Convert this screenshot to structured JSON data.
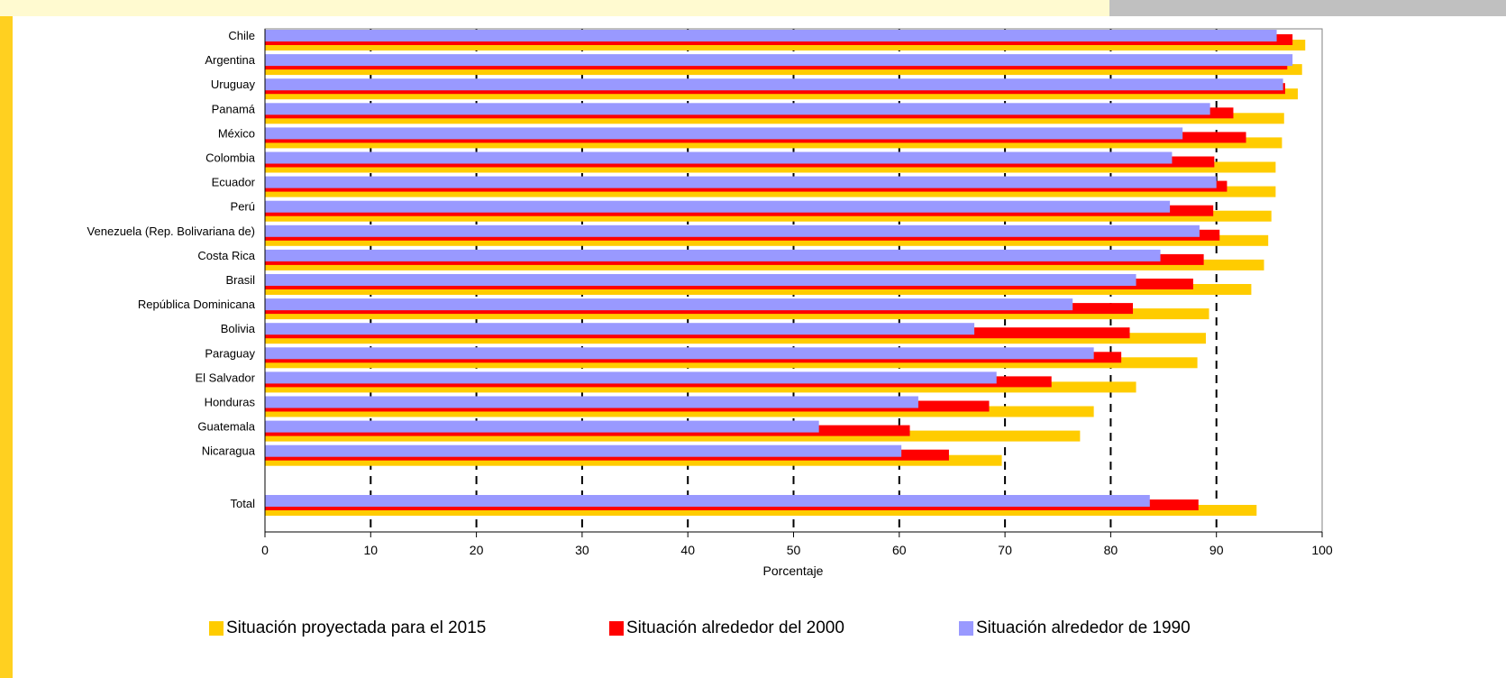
{
  "colors": {
    "series_2015": "#ffcc00",
    "series_2000": "#ff0000",
    "series_1990": "#9999ff",
    "background": "#ffffff",
    "page_background": "#fffde6",
    "accent_edge": "#ffd020"
  },
  "chart_data": {
    "type": "bar",
    "orientation": "horizontal",
    "title": "",
    "xlabel": "Porcentaje",
    "ylabel": "",
    "xlim": [
      0,
      100
    ],
    "xticks": [
      0,
      10,
      20,
      30,
      40,
      50,
      60,
      70,
      80,
      90,
      100
    ],
    "grid": "vertical dashed",
    "legend_position": "bottom",
    "categories": [
      "Chile",
      "Argentina",
      "Uruguay",
      "Panamá",
      "México",
      "Colombia",
      "Ecuador",
      "Perú",
      "Venezuela (Rep. Bolivariana de)",
      "Costa Rica",
      "Brasil",
      "República Dominicana",
      "Bolivia",
      "Paraguay",
      "El Salvador",
      "Honduras",
      "Guatemala",
      "Nicaragua",
      "Total"
    ],
    "series": [
      {
        "name": "Situación proyectada para el 2015",
        "values": [
          98.4,
          98.1,
          97.7,
          96.4,
          96.2,
          95.6,
          95.6,
          95.2,
          94.9,
          94.5,
          93.3,
          89.3,
          89.0,
          88.2,
          82.4,
          78.4,
          77.1,
          69.7,
          93.8
        ]
      },
      {
        "name": "Situación alrededor del 2000",
        "values": [
          97.2,
          96.7,
          96.5,
          91.6,
          92.8,
          89.8,
          91.0,
          89.7,
          90.3,
          88.8,
          87.8,
          82.1,
          81.8,
          81.0,
          74.4,
          68.5,
          61.0,
          64.7,
          88.3
        ]
      },
      {
        "name": "Situación alrededor de 1990",
        "values": [
          95.7,
          97.2,
          96.3,
          89.4,
          86.8,
          85.8,
          90.0,
          85.6,
          88.4,
          84.7,
          82.4,
          76.4,
          67.1,
          78.4,
          69.2,
          61.8,
          52.4,
          60.2,
          83.7
        ]
      }
    ]
  }
}
